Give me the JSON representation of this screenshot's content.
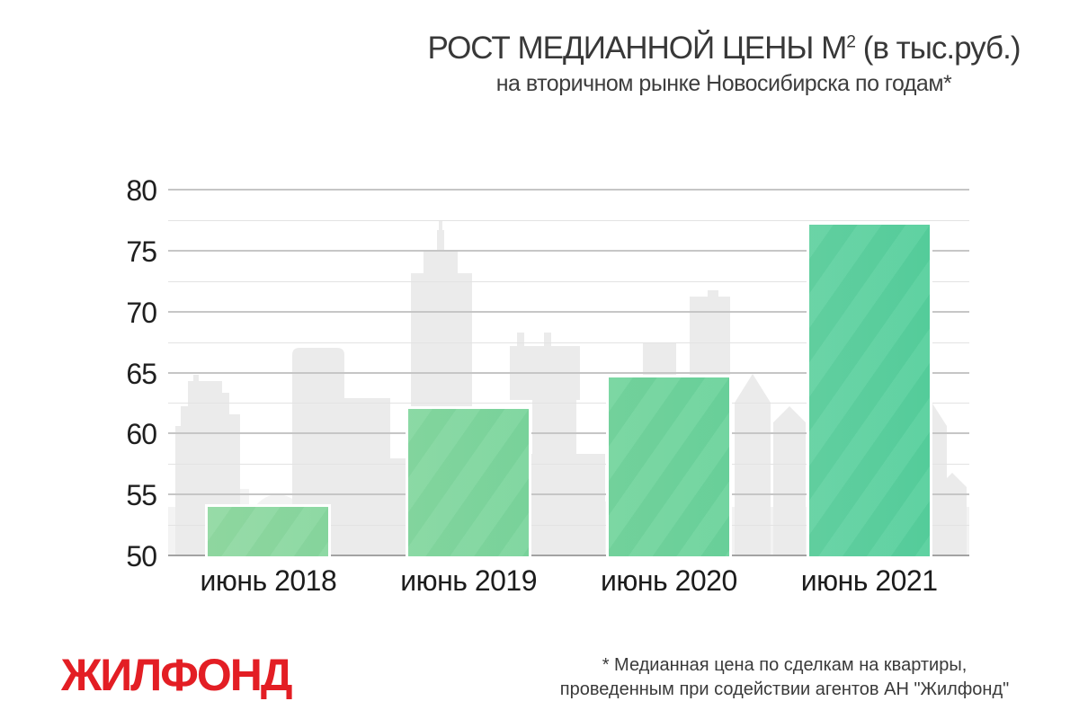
{
  "header": {
    "title_main": "РОСТ МЕДИАННОЙ ЦЕНЫ М",
    "title_sup": "2",
    "title_tail": " (в тыс.руб.)",
    "subtitle": "на вторичном рынке Новосибирска по годам*"
  },
  "chart_data": {
    "type": "bar",
    "title": "РОСТ МЕДИАННОЙ ЦЕНЫ М² (в тыс.руб.) на вторичном рынке Новосибирска по годам*",
    "categories": [
      "июнь 2018",
      "июнь 2019",
      "июнь 2020",
      "июнь 2021"
    ],
    "values": [
      54.3,
      62.3,
      64.9,
      77.4
    ],
    "unit": "тыс. руб. за м²",
    "ylim": [
      50,
      80
    ],
    "y_ticks": [
      50,
      55,
      60,
      65,
      70,
      75,
      80
    ],
    "y_minor_step": 2.5,
    "grid": "horizontal, major and minor lines",
    "legend": "none",
    "bar_colors": [
      [
        "#90d9a2",
        "#87d79e"
      ],
      [
        "#84d79f",
        "#7ad59c"
      ],
      [
        "#74d49d",
        "#6ad29b"
      ],
      [
        "#62d1a1",
        "#55cf9c"
      ]
    ],
    "bar_border_color": "#ffffff"
  },
  "footer": {
    "logo_text": "ЖИЛФОНД",
    "logo_color": "#e31e24",
    "note_line1": "* Медианная цена по сделкам на квартиры,",
    "note_line2": "проведенным при содействии агентов АН \"Жилфонд\""
  },
  "colors": {
    "background": "#ffffff",
    "title_text": "#383838",
    "axis_text": "#1f1f1f",
    "grid_major": "#c6c6c6",
    "grid_minor": "#e3e3e3",
    "axis_baseline": "#a3a3a3",
    "skyline_front": "#ebebeb",
    "skyline_back": "#f3f3f3"
  }
}
